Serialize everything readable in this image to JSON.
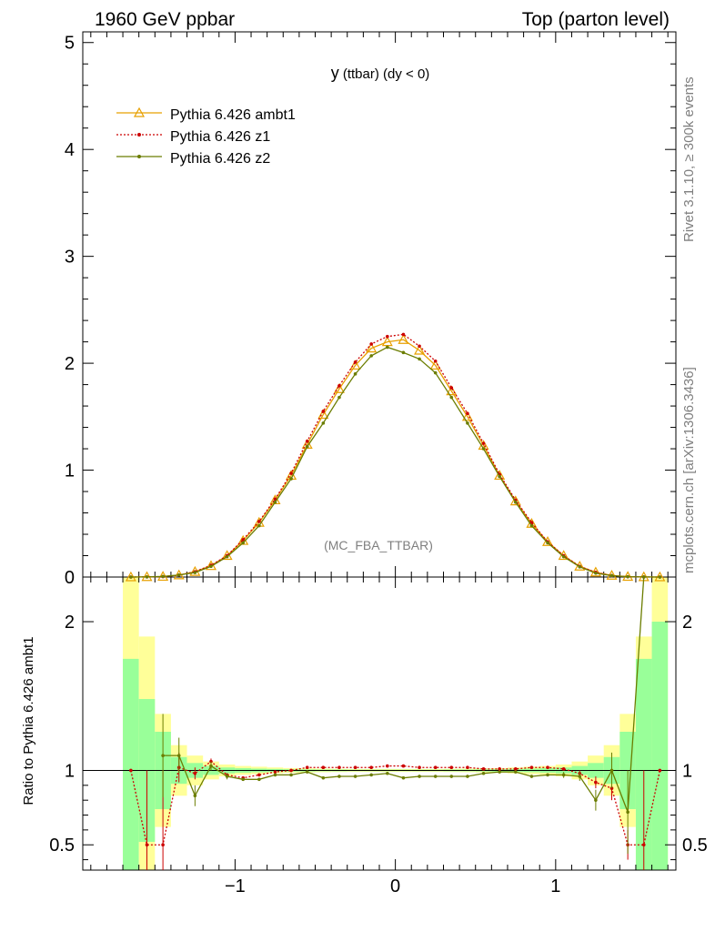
{
  "header": {
    "left": "1960 GeV ppbar",
    "right": "Top (parton level)"
  },
  "side": {
    "rivet": "Rivet 3.1.10, ≥ 300k events",
    "source": "mcplots.cern.ch [arXiv:1306.3436]"
  },
  "plot": {
    "title_main": "y",
    "title_rest": " (ttbar) (dy < 0)",
    "analysis": "(MC_FBA_TTBAR)"
  },
  "legend": [
    {
      "label": "Pythia 6.426 ambt1"
    },
    {
      "label": "Pythia 6.426 z1"
    },
    {
      "label": "Pythia 6.426 z2"
    }
  ],
  "ratio_ylabel": "Ratio to Pythia 6.426 ambt1",
  "axis_labels": {
    "main_y": [
      "0",
      "1",
      "2",
      "3",
      "4",
      "5"
    ],
    "ratio_y": [
      "0.5",
      "1",
      "2"
    ],
    "x": [
      "−1",
      "0",
      "1"
    ]
  },
  "colors": {
    "ambt1": "#e8a000",
    "z1": "#cc0000",
    "z2": "#6b7d00",
    "band_inner": "#99ff99",
    "band_outer": "#ffff99"
  },
  "chart_data": {
    "type": "line",
    "title": "y (ttbar) (dy < 0)",
    "xlabel": "",
    "ylabel": "",
    "xlim": [
      -1.95,
      1.75
    ],
    "ylim": [
      0,
      5.1
    ],
    "ratio_ylim": [
      0.33,
      2.3
    ],
    "x": [
      -1.65,
      -1.55,
      -1.45,
      -1.35,
      -1.25,
      -1.15,
      -1.05,
      -0.95,
      -0.85,
      -0.75,
      -0.65,
      -0.55,
      -0.45,
      -0.35,
      -0.25,
      -0.15,
      -0.05,
      0.05,
      0.15,
      0.25,
      0.35,
      0.45,
      0.55,
      0.65,
      0.75,
      0.85,
      0.95,
      1.05,
      1.15,
      1.25,
      1.35,
      1.45,
      1.55,
      1.65
    ],
    "series": [
      {
        "name": "Pythia 6.426 ambt1",
        "values": [
          0.0,
          0.002,
          0.005,
          0.018,
          0.05,
          0.105,
          0.2,
          0.34,
          0.51,
          0.72,
          0.95,
          1.24,
          1.52,
          1.76,
          1.98,
          2.14,
          2.2,
          2.22,
          2.12,
          1.98,
          1.74,
          1.5,
          1.23,
          0.95,
          0.71,
          0.5,
          0.33,
          0.2,
          0.1,
          0.045,
          0.015,
          0.004,
          0.001,
          0.0
        ]
      },
      {
        "name": "Pythia 6.426 z1",
        "values": [
          0.0,
          0.001,
          0.004,
          0.018,
          0.05,
          0.11,
          0.2,
          0.35,
          0.52,
          0.73,
          0.97,
          1.27,
          1.55,
          1.79,
          2.01,
          2.18,
          2.25,
          2.27,
          2.16,
          2.02,
          1.77,
          1.53,
          1.25,
          0.96,
          0.72,
          0.51,
          0.33,
          0.2,
          0.1,
          0.044,
          0.013,
          0.003,
          0.0005,
          0.0
        ]
      },
      {
        "name": "Pythia 6.426 z2",
        "values": [
          0.0,
          0.001,
          0.005,
          0.019,
          0.042,
          0.1,
          0.19,
          0.32,
          0.48,
          0.7,
          0.92,
          1.22,
          1.44,
          1.68,
          1.9,
          2.07,
          2.15,
          2.1,
          2.04,
          1.91,
          1.68,
          1.44,
          1.2,
          0.94,
          0.7,
          0.48,
          0.32,
          0.19,
          0.095,
          0.036,
          0.013,
          0.003,
          0.001,
          0.0
        ]
      }
    ],
    "ratio": {
      "z1": [
        1.0,
        0.5,
        0.5,
        1.02,
        0.98,
        1.06,
        0.97,
        0.95,
        0.97,
        0.99,
        1.0,
        1.02,
        1.02,
        1.02,
        1.02,
        1.02,
        1.03,
        1.03,
        1.02,
        1.02,
        1.02,
        1.02,
        1.01,
        1.01,
        1.01,
        1.02,
        1.02,
        1.01,
        0.98,
        0.92,
        0.88,
        0.5,
        0.5,
        1.0
      ],
      "z1_err": [
        0.0,
        0.5,
        0.5,
        0.1,
        0.04,
        0.02,
        0.01,
        0.01,
        0.01,
        0.01,
        0.01,
        0.01,
        0.01,
        0.01,
        0.01,
        0.01,
        0.01,
        0.01,
        0.01,
        0.01,
        0.01,
        0.01,
        0.01,
        0.01,
        0.01,
        0.01,
        0.01,
        0.01,
        0.02,
        0.04,
        0.08,
        0.1,
        0.5,
        0.0
      ],
      "z2": [
        null,
        null,
        1.1,
        1.1,
        0.83,
        1.03,
        0.96,
        0.94,
        0.94,
        0.97,
        0.97,
        0.99,
        0.95,
        0.96,
        0.96,
        0.97,
        0.98,
        0.95,
        0.96,
        0.96,
        0.96,
        0.96,
        0.98,
        0.99,
        0.99,
        0.96,
        0.97,
        0.97,
        0.96,
        0.8,
        1.0,
        0.72,
        2.3,
        null
      ],
      "z2_err": [
        0,
        0,
        0.28,
        0.12,
        0.07,
        0.03,
        0.02,
        0.01,
        0.01,
        0.01,
        0.01,
        0.01,
        0.01,
        0.01,
        0.01,
        0.01,
        0.01,
        0.01,
        0.01,
        0.01,
        0.01,
        0.01,
        0.01,
        0.01,
        0.01,
        0.01,
        0.01,
        0.02,
        0.03,
        0.07,
        0.12,
        0.28,
        0,
        0
      ],
      "band_inner": [
        0.75,
        0.48,
        0.26,
        0.09,
        0.05,
        0.03,
        0.02,
        0.015,
        0.012,
        0.01,
        0.008,
        0.007,
        0.006,
        0.006,
        0.005,
        0.005,
        0.005,
        0.005,
        0.005,
        0.005,
        0.006,
        0.006,
        0.007,
        0.008,
        0.01,
        0.012,
        0.015,
        0.02,
        0.03,
        0.05,
        0.09,
        0.26,
        0.75,
        1.0
      ],
      "band_outer": [
        1.45,
        0.9,
        0.38,
        0.17,
        0.1,
        0.06,
        0.04,
        0.03,
        0.025,
        0.02,
        0.016,
        0.014,
        0.012,
        0.011,
        0.01,
        0.01,
        0.01,
        0.01,
        0.01,
        0.01,
        0.011,
        0.012,
        0.014,
        0.016,
        0.02,
        0.025,
        0.03,
        0.04,
        0.06,
        0.1,
        0.17,
        0.38,
        0.9,
        1.45
      ]
    },
    "bin_width": 0.1
  }
}
